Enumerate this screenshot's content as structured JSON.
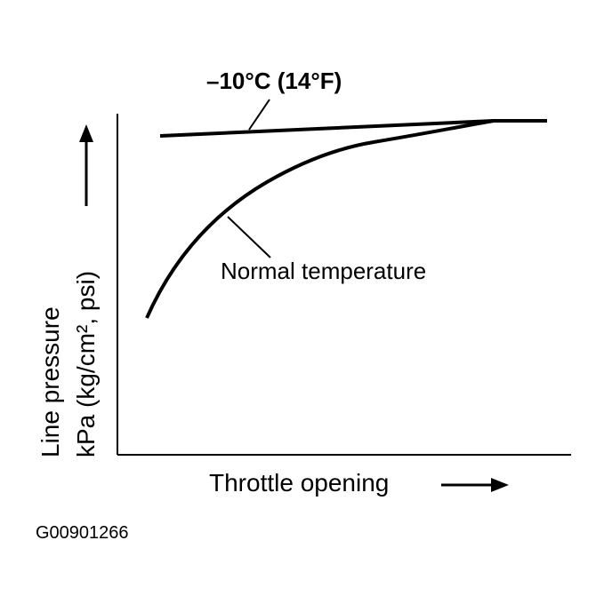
{
  "diagram": {
    "curves": [
      {
        "label": "–10°C (14°F)"
      },
      {
        "label": "Normal temperature"
      }
    ],
    "y_axis": {
      "label_line1": "Line pressure",
      "label_line2": "kPa (kg/cm², psi)"
    },
    "x_axis": {
      "label": "Throttle opening"
    },
    "figure_id": "G00901266"
  }
}
